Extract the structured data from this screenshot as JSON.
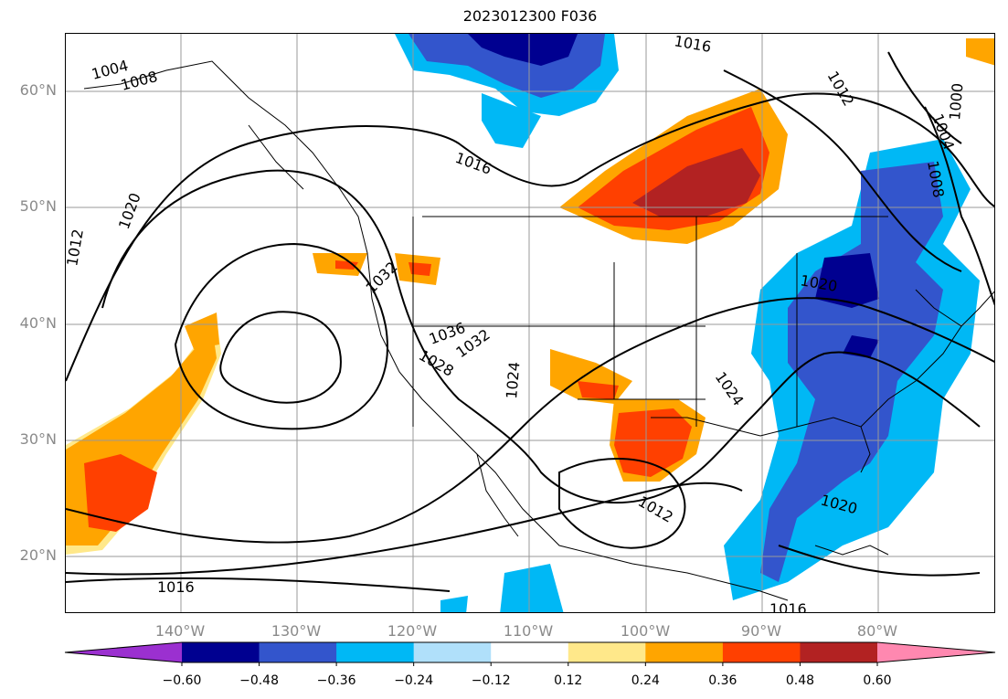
{
  "title": "2023012300 F036",
  "lat_labels": [
    "60°N",
    "50°N",
    "40°N",
    "30°N",
    "20°N"
  ],
  "lon_labels": [
    "140°W",
    "130°W",
    "120°W",
    "110°W",
    "100°W",
    "90°W",
    "80°W"
  ],
  "contour_labels": [
    "1004",
    "1008",
    "1012",
    "1016",
    "1016",
    "1016",
    "1020",
    "1020",
    "1020",
    "1024",
    "1024",
    "1028",
    "1032",
    "1032",
    "1036",
    "1012",
    "1004",
    "1000",
    "1008",
    "1016",
    "1012"
  ],
  "colorbar": {
    "ticks": [
      "−0.60",
      "−0.48",
      "−0.36",
      "−0.24",
      "−0.12",
      "0.12",
      "0.24",
      "0.36",
      "0.48",
      "0.60"
    ],
    "colors": [
      "#9b30d0",
      "#000090",
      "#3355cc",
      "#00b8f5",
      "#b0e0fa",
      "#ffffff",
      "#ffe88a",
      "#ffa500",
      "#ff4000",
      "#b22222",
      "#ff88b0"
    ]
  }
}
